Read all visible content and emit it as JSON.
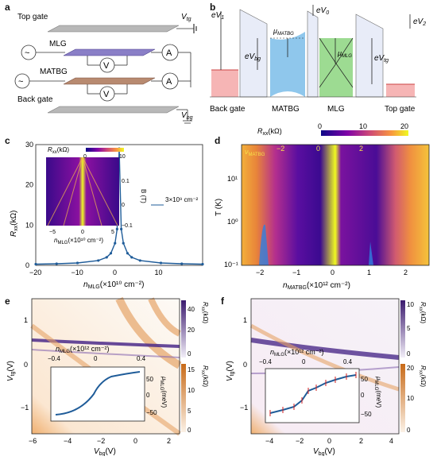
{
  "panels": {
    "a": {
      "label": "a",
      "top_gate": "Top gate",
      "v_tg": "V",
      "v_tg_sub": "tg",
      "mlg": "MLG",
      "matbg": "MATBG",
      "back_gate": "Back gate",
      "v_bg": "V",
      "v_bg_sub": "bg",
      "voltmeter": "V",
      "ammeter": "A",
      "source": "~"
    },
    "b": {
      "label": "b",
      "eV1": "eV",
      "eV1_sub": "1",
      "eV0": "eV",
      "eV0_sub": "0",
      "eV2": "eV",
      "eV2_sub": "2",
      "mu_matbg": "μ",
      "mu_matbg_sub": "MATBG",
      "eVbg": "eV",
      "eVbg_sub": "bg",
      "mu_mlg": "μ",
      "mu_mlg_sub": "MLG",
      "eVtg": "eV",
      "eVtg_sub": "tg",
      "layers": [
        "Back gate",
        "MATBG",
        "MLG",
        "Top gate"
      ]
    },
    "c": {
      "label": "c",
      "ylabel": "R",
      "ylabel_sup": "MLG",
      "ylabel_sub": "xx",
      "ylabel_unit": "(kΩ)",
      "xlabel": "n",
      "xlabel_sub": "MLG",
      "xlabel_unit": "(×10¹⁰ cm⁻²)",
      "xticks": [
        "−20",
        "−10",
        "0",
        "10"
      ],
      "yticks": [
        "0",
        "10",
        "20",
        "30"
      ],
      "inset": {
        "cbar_label": "R",
        "cbar_sup": "MLG",
        "cbar_sub": "xx",
        "cbar_unit": "(kΩ)",
        "cbar_ticks": [
          "0",
          "10"
        ],
        "ylabel": "B (T)",
        "yticks": [
          "0.1",
          "0",
          "−0.1"
        ],
        "xticks": [
          "−5",
          "0",
          "5"
        ],
        "xlabel": "n",
        "xlabel_sub": "MLG",
        "xlabel_unit": "(×10¹⁰ cm⁻²)"
      },
      "annotation": "3×10⁹ cm⁻²"
    },
    "d": {
      "label": "d",
      "cbar_label": "R",
      "cbar_sup": "MATBG",
      "cbar_sub": "xx",
      "cbar_unit": "(kΩ)",
      "cbar_ticks": [
        "0",
        "10",
        "20"
      ],
      "nu_label": "ν",
      "nu_sub": "MATBG",
      "nu_ticks": [
        "−2",
        "0",
        "2"
      ],
      "ylabel": "T (K)",
      "yticks": [
        "10¹",
        "10⁰",
        "10⁻¹"
      ],
      "xticks": [
        "−2",
        "−1",
        "0",
        "1",
        "2"
      ],
      "xlabel": "n",
      "xlabel_sub": "MATBG",
      "xlabel_unit": "(×10¹² cm⁻²)"
    },
    "e": {
      "label": "e",
      "ylabel": "V",
      "ylabel_sub": "tg",
      "ylabel_unit": "(V)",
      "yticks": [
        "1",
        "0",
        "−1"
      ],
      "xticks": [
        "−6",
        "−4",
        "−2",
        "0",
        "2"
      ],
      "xlabel": "V",
      "xlabel_sub": "bg",
      "xlabel_unit": "(V)",
      "top_axis": {
        "label": "n",
        "label_sub": "MLG",
        "unit": "(×10¹² cm⁻²)",
        "ticks": [
          "−0.4",
          "0",
          "0.4"
        ]
      },
      "inset": {
        "ylabel": "μ",
        "ylabel_sub": "MLG",
        "ylabel_unit": "(meV)",
        "yticks": [
          "50",
          "0",
          "−50"
        ]
      },
      "cbar1": {
        "label": "R",
        "sup": "MLG",
        "sub": "xx",
        "unit": "(kΩ)",
        "ticks": [
          "40",
          "20",
          "0"
        ]
      },
      "cbar2": {
        "label": "R",
        "sup": "MATBG",
        "sub": "xx",
        "unit": "(kΩ)",
        "ticks": [
          "15",
          "10",
          "5",
          "0"
        ]
      }
    },
    "f": {
      "label": "f",
      "ylabel": "V",
      "ylabel_sub": "tg",
      "ylabel_unit": "(V)",
      "yticks": [
        "1",
        "0",
        "−1"
      ],
      "xticks": [
        "−4",
        "−2",
        "0",
        "2",
        "4"
      ],
      "xlabel": "V",
      "xlabel_sub": "bg",
      "xlabel_unit": "(V)",
      "top_axis": {
        "label": "n",
        "label_sub": "MLG",
        "unit": "(×10¹² cm⁻²)",
        "ticks": [
          "−0.4",
          "0",
          "0.4"
        ]
      },
      "inset": {
        "ylabel": "μ",
        "ylabel_sub": "MLG",
        "ylabel_unit": "(meV)",
        "yticks": [
          "50",
          "0",
          "−50"
        ]
      },
      "cbar1": {
        "label": "R",
        "sup": "MLG",
        "sub": "xx",
        "unit": "(kΩ)",
        "ticks": [
          "10",
          "5",
          "0"
        ]
      },
      "cbar2": {
        "label": "R",
        "sup": "MATBG",
        "sub": "xx",
        "unit": "(kΩ)",
        "ticks": [
          "20",
          "10",
          "0"
        ]
      }
    }
  },
  "colors": {
    "mlg_plane": "#8a7fc7",
    "matbg_plane": "#b88a70",
    "gate": "#a9a9a9",
    "matbg_fill": "#6ab4e6",
    "mlg_fill": "#7ccf6e",
    "gate_fill": "#f19a9a",
    "line_blue": "#1f5c99",
    "orange": "#e08a2a",
    "purple": "#3b1a6e"
  },
  "chart_data": [
    {
      "panel": "c",
      "type": "line",
      "series": [
        {
          "values_x": [
            -20,
            -15,
            -10,
            -5,
            -3,
            -2,
            -1,
            -0.5,
            0,
            0.5,
            1,
            2,
            3,
            5,
            10,
            15,
            20
          ],
          "values_y": [
            0.3,
            0.4,
            0.6,
            1.2,
            2.0,
            3.0,
            5.5,
            9,
            29,
            9,
            5.5,
            3.0,
            2.0,
            1.2,
            0.6,
            0.4,
            0.3
          ]
        }
      ],
      "xlim": [
        -20,
        20
      ],
      "ylim": [
        0,
        30
      ]
    }
  ]
}
